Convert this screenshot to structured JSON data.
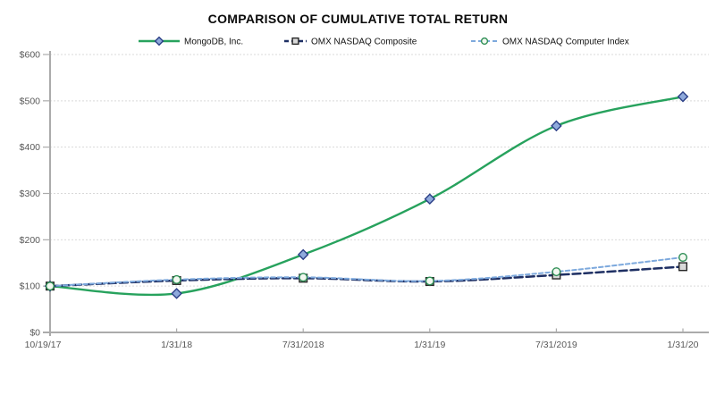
{
  "chart_data": {
    "type": "line",
    "title": "COMPARISON OF CUMULATIVE TOTAL RETURN",
    "categories": [
      "10/19/17",
      "1/31/18",
      "7/31/2018",
      "1/31/19",
      "7/31/2019",
      "1/31/20"
    ],
    "ylim": [
      0,
      600
    ],
    "ytick_labels": [
      "$0",
      "$100",
      "$200",
      "$300",
      "$400",
      "$500",
      "$600"
    ],
    "grid": "horizontal-dashed",
    "legend_position": "top",
    "series": [
      {
        "name": "MongoDB, Inc.",
        "values": [
          100,
          84,
          168,
          288,
          446,
          509
        ],
        "color": "#27A25D",
        "dash": "",
        "width": 2.4,
        "marker": "diamond",
        "marker_fill": "#8FAADC",
        "marker_stroke": "#2B3F87",
        "smooth": true
      },
      {
        "name": "OMX NASDAQ Composite",
        "values": [
          100,
          112,
          117,
          110,
          124,
          142
        ],
        "color": "#1E2F63",
        "dash": "9 4",
        "width": 2.5,
        "marker": "square",
        "marker_fill": "#D9D9D9",
        "marker_stroke": "#262626",
        "smooth": true
      },
      {
        "name": "OMX NASDAQ Computer Index",
        "values": [
          100,
          114,
          119,
          111,
          131,
          162
        ],
        "color": "#7DA9DD",
        "dash": "4.5 3",
        "width": 2,
        "marker": "circle",
        "marker_fill": "#F2F8F0",
        "marker_stroke": "#2F8F56",
        "smooth": true
      }
    ],
    "axis_color": "#ABABAB",
    "grid_color": "#D9D9D9",
    "tick_label_color": "#595959",
    "legend_text_color": "#111111",
    "background": "#FFFFFF"
  }
}
